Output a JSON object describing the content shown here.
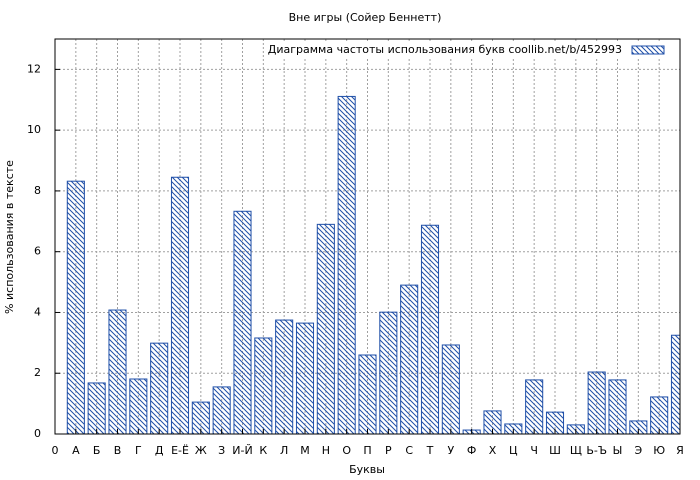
{
  "chart_data": {
    "type": "bar",
    "title": "Вне игры (Сойер Беннетт)",
    "xlabel": "Буквы",
    "ylabel": "% использования в тексте",
    "x": [
      1,
      2,
      3,
      4,
      5,
      6,
      7,
      8,
      9,
      10,
      11,
      12,
      13,
      14,
      15,
      16,
      17,
      18,
      19,
      20,
      21,
      22,
      23,
      24,
      25,
      26,
      27,
      28,
      29,
      30
    ],
    "series": [
      {
        "name": "Диаграмма частоты использования букв  coollib.net/b/452993",
        "color": "#1f4fa8",
        "values": [
          8.32,
          1.68,
          4.08,
          1.81,
          2.99,
          8.45,
          1.05,
          1.55,
          7.33,
          3.16,
          3.75,
          3.65,
          6.9,
          11.11,
          2.6,
          4.01,
          4.9,
          6.87,
          2.93,
          0.13,
          0.76,
          0.33,
          1.78,
          0.72,
          0.3,
          2.04,
          1.78,
          0.43,
          1.22,
          3.25
        ]
      }
    ],
    "xlim": [
      0,
      30
    ],
    "xticks": [
      0,
      {
        "value": 1,
        "label": "А"
      },
      {
        "value": 2,
        "label": "Б"
      },
      {
        "value": 3,
        "label": "В"
      },
      {
        "value": 4,
        "label": "Г"
      },
      {
        "value": 5,
        "label": "Д"
      },
      {
        "value": 6,
        "label": "Е-Ё"
      },
      {
        "value": 7,
        "label": "Ж"
      },
      {
        "value": 8,
        "label": "З"
      },
      {
        "value": 9,
        "label": "И-Й"
      },
      {
        "value": 10,
        "label": "К"
      },
      {
        "value": 11,
        "label": "Л"
      },
      {
        "value": 12,
        "label": "М"
      },
      {
        "value": 13,
        "label": "Н"
      },
      {
        "value": 14,
        "label": "О"
      },
      {
        "value": 15,
        "label": "П"
      },
      {
        "value": 16,
        "label": "Р"
      },
      {
        "value": 17,
        "label": "С"
      },
      {
        "value": 18,
        "label": "Т"
      },
      {
        "value": 19,
        "label": "У"
      },
      {
        "value": 20,
        "label": "Ф"
      },
      {
        "value": 21,
        "label": "Х"
      },
      {
        "value": 22,
        "label": "Ц"
      },
      {
        "value": 23,
        "label": "Ч"
      },
      {
        "value": 24,
        "label": "Ш"
      },
      {
        "value": 25,
        "label": "Щ"
      },
      {
        "value": 26,
        "label": "Ь-Ъ"
      },
      {
        "value": 27,
        "label": "Ы"
      },
      {
        "value": 28,
        "label": "Э"
      },
      {
        "value": 29,
        "label": "Ю"
      },
      {
        "value": 30,
        "label": "Я"
      }
    ],
    "ylim": [
      0,
      13
    ],
    "yticks": [
      0,
      2,
      4,
      6,
      8,
      10,
      12
    ],
    "grid": true,
    "legend": "top-right"
  }
}
